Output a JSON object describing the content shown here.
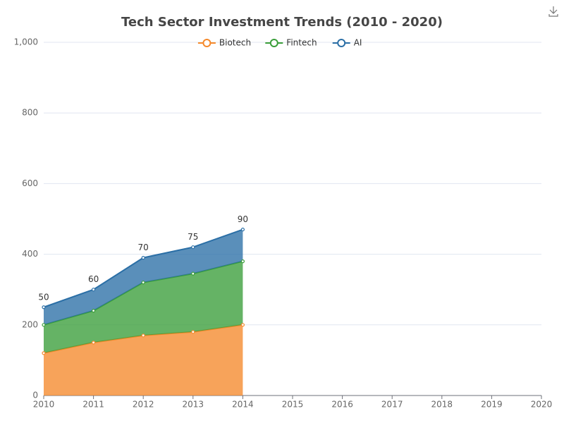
{
  "chart_data": {
    "type": "stacked_area",
    "title": "Tech Sector Investment Trends (2010 - 2020)",
    "categories": [
      "2010",
      "2011",
      "2012",
      "2013",
      "2014",
      "2015",
      "2016",
      "2017",
      "2018",
      "2019",
      "2020"
    ],
    "series": [
      {
        "name": "Biotech",
        "color": "#f5892b",
        "values": [
          120,
          150,
          170,
          180,
          200,
          null,
          null,
          null,
          null,
          null,
          null
        ]
      },
      {
        "name": "Fintech",
        "color": "#3a9e3a",
        "values": [
          80,
          90,
          150,
          165,
          180,
          null,
          null,
          null,
          null,
          null,
          null
        ]
      },
      {
        "name": "AI",
        "color": "#2b6fa6",
        "values": [
          50,
          60,
          70,
          75,
          90,
          null,
          null,
          null,
          null,
          null,
          null
        ]
      }
    ],
    "ylim": [
      0,
      1000
    ],
    "yticks": [
      0,
      200,
      400,
      600,
      800,
      {
        "value": 1000,
        "label": "1,000"
      }
    ],
    "grid": true,
    "legend": "top"
  }
}
